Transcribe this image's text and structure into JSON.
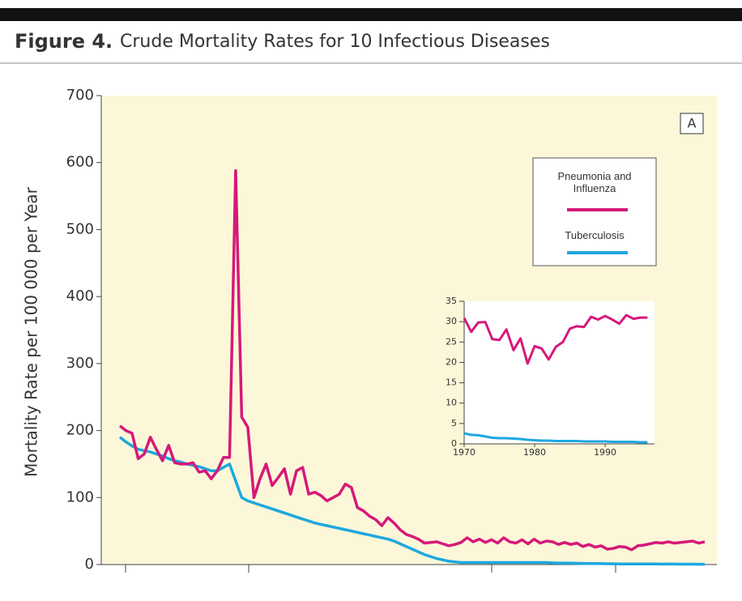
{
  "figure_label": "Figure 4.",
  "figure_title": "Crude Mortality Rates for 10 Infectious Diseases",
  "chart_data": [
    {
      "type": "line",
      "panel_label": "A",
      "y_label": "Mortality Rate per 100 000 per Year",
      "ylim": [
        0,
        700
      ],
      "yticks": [
        0,
        100,
        200,
        300,
        400,
        500,
        600,
        700
      ],
      "legend": "upper right",
      "series": [
        {
          "name": "Pneumonia and Influenza",
          "color": "#d6197a",
          "values": [
            207,
            200,
            196,
            158,
            165,
            190,
            172,
            155,
            178,
            152,
            150,
            150,
            152,
            138,
            140,
            128,
            140,
            160,
            160,
            588,
            220,
            205,
            100,
            128,
            150,
            118,
            130,
            143,
            105,
            140,
            145,
            105,
            108,
            103,
            95,
            100,
            105,
            120,
            115,
            85,
            80,
            72,
            67,
            58,
            70,
            62,
            52,
            45,
            42,
            38,
            32,
            33,
            34,
            31,
            28,
            30,
            33,
            40,
            34,
            38,
            33,
            37,
            32,
            40,
            34,
            32,
            37,
            31,
            38,
            32,
            35,
            34,
            30,
            33,
            30,
            32,
            27,
            30,
            26,
            28,
            23,
            24,
            27,
            26,
            22,
            28,
            29,
            31,
            33,
            32,
            34,
            32,
            33,
            34,
            35,
            32,
            34
          ]
        },
        {
          "name": "Tuberculosis",
          "color": "#1ea7df",
          "values": [
            190,
            183,
            177,
            172,
            170,
            168,
            165,
            162,
            158,
            155,
            153,
            150,
            148,
            146,
            143,
            140,
            140,
            145,
            150,
            125,
            100,
            95,
            92,
            89,
            86,
            83,
            80,
            77,
            74,
            71,
            68,
            65,
            62,
            60,
            58,
            56,
            54,
            52,
            50,
            48,
            46,
            44,
            42,
            40,
            38,
            35,
            31,
            27,
            23,
            19,
            15,
            12,
            9,
            7,
            5,
            4,
            3,
            3,
            3,
            3,
            3,
            3,
            3,
            3,
            3,
            3,
            3,
            3,
            3,
            3,
            3,
            2.5,
            2.3,
            2.2,
            2,
            1.8,
            1.7,
            1.6,
            1.5,
            1.3,
            1.2,
            1.1,
            1,
            1,
            0.9,
            0.9,
            0.8,
            0.8,
            0.8,
            0.7,
            0.7,
            0.7,
            0.6,
            0.6,
            0.6,
            0.5,
            0.5
          ]
        }
      ]
    },
    {
      "type": "line",
      "x": [
        1970,
        1971,
        1972,
        1973,
        1974,
        1975,
        1976,
        1977,
        1978,
        1979,
        1980,
        1981,
        1982,
        1983,
        1984,
        1985,
        1986,
        1987,
        1988,
        1989,
        1990,
        1991,
        1992,
        1993,
        1994,
        1995,
        1996
      ],
      "xlim": [
        1970,
        1997
      ],
      "xticks": [
        1970,
        1980,
        1990
      ],
      "ylim": [
        0,
        35
      ],
      "yticks": [
        0,
        5,
        10,
        15,
        20,
        25,
        30,
        35
      ],
      "series": [
        {
          "color": "#d6197a",
          "values": [
            30.9,
            27.5,
            29.8,
            29.9,
            25.7,
            25.5,
            28.1,
            23,
            25.9,
            19.7,
            24,
            23.4,
            20.7,
            23.8,
            25,
            28.3,
            28.9,
            28.7,
            31.2,
            30.5,
            31.4,
            30.5,
            29.5,
            31.6,
            30.7,
            31,
            31
          ]
        },
        {
          "color": "#1ea7df",
          "values": [
            2.6,
            2.2,
            2.1,
            1.8,
            1.5,
            1.4,
            1.4,
            1.3,
            1.2,
            1.0,
            0.9,
            0.8,
            0.8,
            0.7,
            0.7,
            0.7,
            0.7,
            0.6,
            0.6,
            0.6,
            0.6,
            0.5,
            0.5,
            0.5,
            0.5,
            0.4,
            0.4
          ]
        }
      ]
    }
  ]
}
